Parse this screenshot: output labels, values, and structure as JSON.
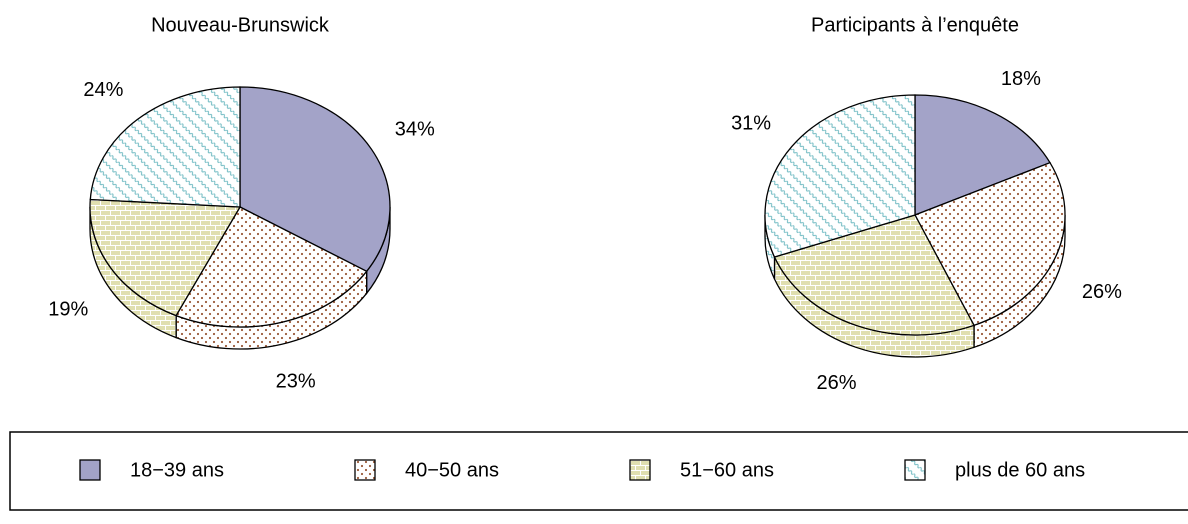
{
  "chart_data": [
    {
      "type": "pie",
      "title": "Nouveau-Brunswick",
      "categories": [
        "18−39 ans",
        "40−50 ans",
        "51−60 ans",
        "plus de 60 ans"
      ],
      "values": [
        34,
        23,
        19,
        24
      ],
      "value_labels": [
        "34%",
        "23%",
        "19%",
        "24%"
      ],
      "colors": [
        "#a3a3c8",
        "#ffffff",
        "#e0dfb0",
        "#ffffff"
      ]
    },
    {
      "type": "pie",
      "title": "Participants à l’enquête",
      "categories": [
        "18−39 ans",
        "40−50 ans",
        "51−60 ans",
        "plus de 60 ans"
      ],
      "values": [
        18,
        26,
        26,
        31
      ],
      "value_labels": [
        "18%",
        "26%",
        "26%",
        "31%"
      ],
      "colors": [
        "#a3a3c8",
        "#ffffff",
        "#e0dfb0",
        "#ffffff"
      ]
    }
  ]
}
